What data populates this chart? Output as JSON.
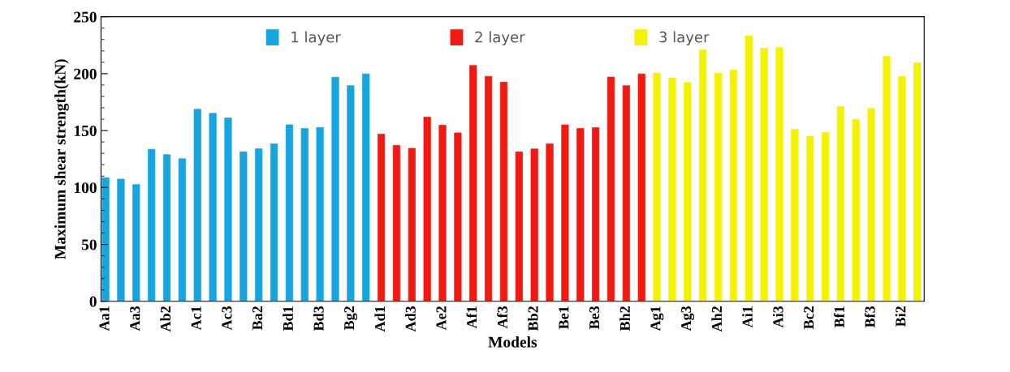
{
  "chart_data": {
    "type": "bar",
    "xlabel": "Models",
    "ylabel": "Maximum shear strength(kN)",
    "categories": [
      "Aa1",
      null,
      "Aa3",
      null,
      "Ab2",
      null,
      "Ac1",
      null,
      "Ac3",
      null,
      "Ba2",
      null,
      "Bd1",
      null,
      "Bd3",
      null,
      "Bg2",
      null,
      "Ad1",
      null,
      "Ad3",
      null,
      "Ae2",
      null,
      "Af1",
      null,
      "Af3",
      null,
      "Bb2",
      null,
      "Be1",
      null,
      "Be3",
      null,
      "Bh2",
      null,
      "Ag1",
      null,
      "Ag3",
      null,
      "Ah2",
      null,
      "Ai1",
      null,
      "Ai3",
      null,
      "Bc2",
      null,
      "Bf1",
      null,
      "Bf3",
      null,
      "Bi2",
      null
    ],
    "series": [
      {
        "name": "1 layer",
        "color": "#17a5e0",
        "values": [
          108.6,
          107.4,
          102.6,
          133.6,
          128.9,
          125.3,
          168.7,
          165.2,
          161.1,
          131.3,
          134.1,
          138.4,
          155.1,
          151.8,
          152.7,
          196.9,
          189.5,
          199.8,
          null,
          null,
          null,
          null,
          null,
          null,
          null,
          null,
          null,
          null,
          null,
          null,
          null,
          null,
          null,
          null,
          null,
          null,
          null,
          null,
          null,
          null,
          null,
          null,
          null,
          null,
          null,
          null,
          null,
          null,
          null,
          null,
          null,
          null,
          null,
          null
        ]
      },
      {
        "name": "2 layer",
        "color": "#f01a10",
        "values": [
          null,
          null,
          null,
          null,
          null,
          null,
          null,
          null,
          null,
          null,
          null,
          null,
          null,
          null,
          null,
          null,
          null,
          null,
          146.8,
          137.0,
          134.4,
          161.8,
          154.7,
          148.0,
          207.2,
          197.6,
          192.6,
          131.3,
          133.9,
          138.4,
          155.0,
          151.8,
          152.5,
          197.0,
          189.5,
          199.8,
          null,
          null,
          null,
          null,
          null,
          null,
          null,
          null,
          null,
          null,
          null,
          null,
          null,
          null,
          null,
          null,
          null,
          null
        ]
      },
      {
        "name": "3 layer",
        "color": "#f5f200",
        "values": [
          null,
          null,
          null,
          null,
          null,
          null,
          null,
          null,
          null,
          null,
          null,
          null,
          null,
          null,
          null,
          null,
          null,
          null,
          null,
          null,
          null,
          null,
          null,
          null,
          null,
          null,
          null,
          null,
          null,
          null,
          null,
          null,
          null,
          null,
          null,
          null,
          200.5,
          196.2,
          192.1,
          221.0,
          200.5,
          203.3,
          233.2,
          222.4,
          222.9,
          151.1,
          144.9,
          148.4,
          171.1,
          159.9,
          169.5,
          215.3,
          197.6,
          209.5
        ]
      }
    ],
    "ylim": [
      0,
      250
    ],
    "yticks": [
      0,
      50,
      100,
      150,
      200,
      250
    ],
    "legend": "top",
    "grid": false
  }
}
